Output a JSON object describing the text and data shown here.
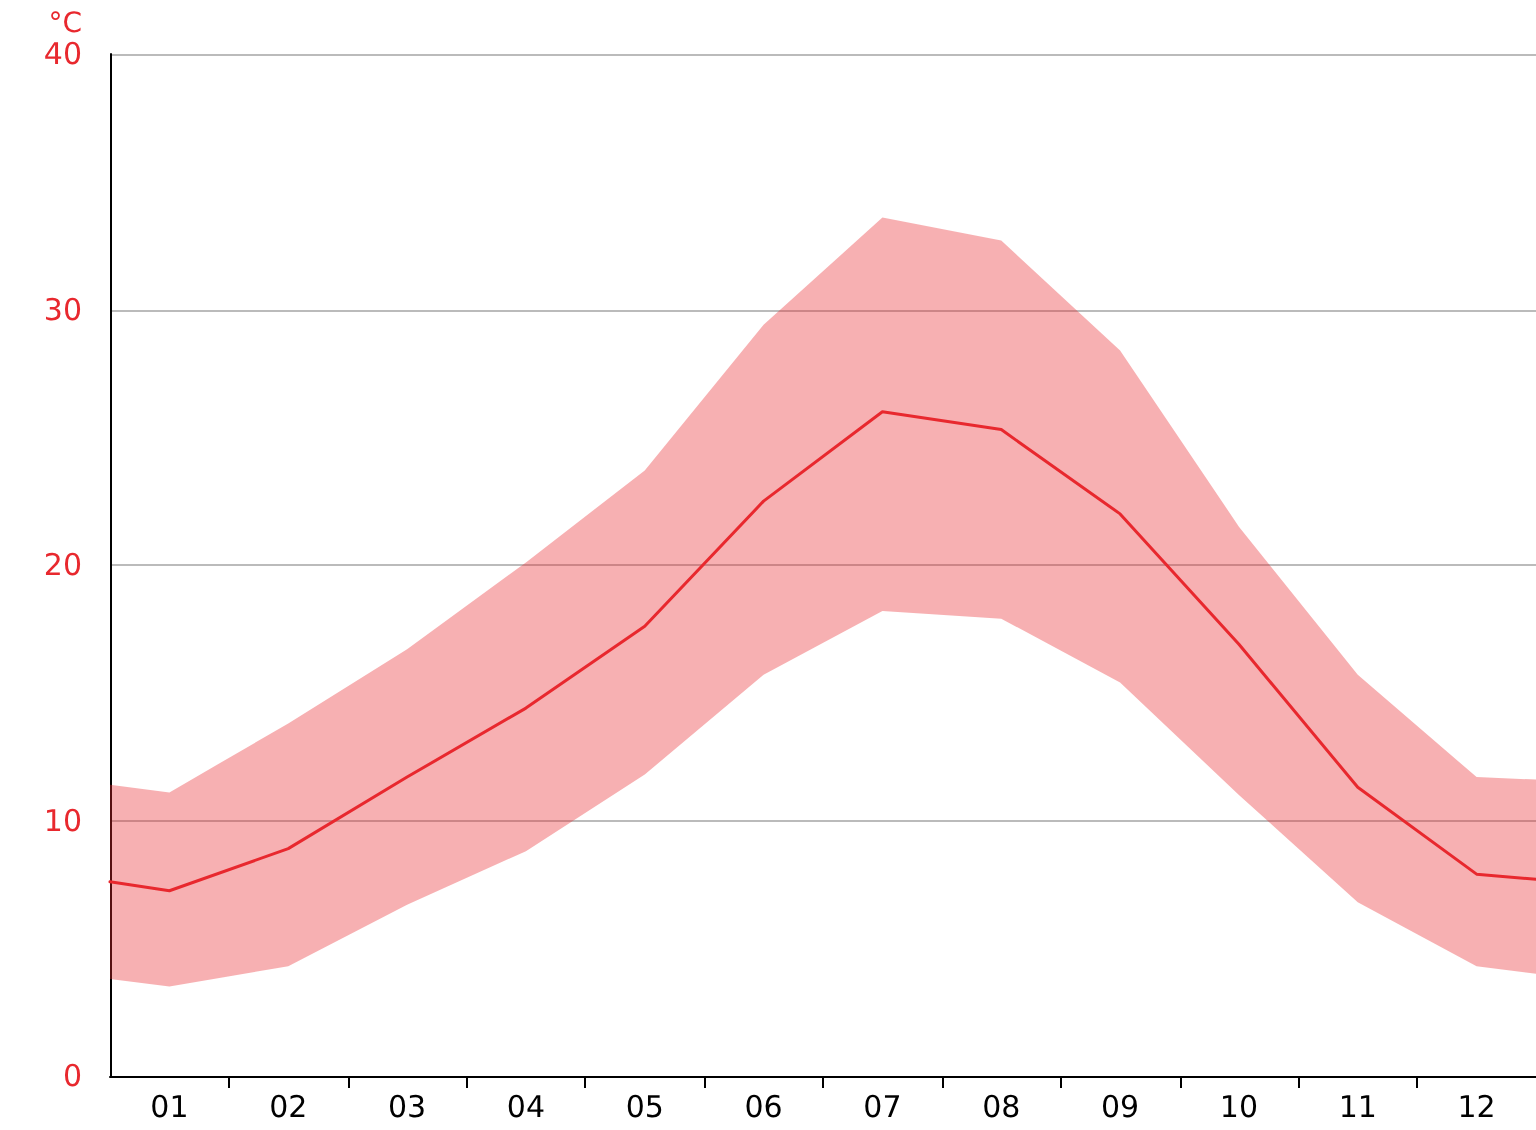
{
  "chart_data": {
    "type": "line",
    "ylabel": "°C",
    "x": [
      0.5,
      1,
      2,
      3,
      4,
      5,
      6,
      7,
      8,
      9,
      10,
      11,
      12,
      12.5
    ],
    "series": [
      {
        "color": "#e8282e",
        "values": [
          7.6,
          7.25,
          8.9,
          11.7,
          14.4,
          17.6,
          22.5,
          26,
          25.3,
          22,
          16.9,
          11.3,
          7.9,
          7.7
        ],
        "lower": [
          3.8,
          3.5,
          4.3,
          6.7,
          8.8,
          11.8,
          15.7,
          18.2,
          17.9,
          15.4,
          11,
          6.8,
          4.3,
          4
        ],
        "upper": [
          11.4,
          11.1,
          13.8,
          16.7,
          20.1,
          23.7,
          29.4,
          33.6,
          32.7,
          28.4,
          21.5,
          15.7,
          11.7,
          11.6
        ]
      }
    ],
    "xlim": [
      0.5,
      12.5
    ],
    "xticks": [
      {
        "value": 1,
        "label": "01"
      },
      {
        "value": 1.5,
        "label": null
      },
      {
        "value": 2,
        "label": "02"
      },
      {
        "value": 2.5,
        "label": null
      },
      {
        "value": 3,
        "label": "03"
      },
      {
        "value": 3.5,
        "label": null
      },
      {
        "value": 4,
        "label": "04"
      },
      {
        "value": 4.5,
        "label": null
      },
      {
        "value": 5,
        "label": "05"
      },
      {
        "value": 5.5,
        "label": null
      },
      {
        "value": 6,
        "label": "06"
      },
      {
        "value": 6.5,
        "label": null
      },
      {
        "value": 7,
        "label": "07"
      },
      {
        "value": 7.5,
        "label": null
      },
      {
        "value": 8,
        "label": "08"
      },
      {
        "value": 8.5,
        "label": null
      },
      {
        "value": 9,
        "label": "09"
      },
      {
        "value": 9.5,
        "label": null
      },
      {
        "value": 10,
        "label": "10"
      },
      {
        "value": 10.5,
        "label": null
      },
      {
        "value": 11,
        "label": "11"
      },
      {
        "value": 11.5,
        "label": null
      },
      {
        "value": 12,
        "label": "12"
      }
    ],
    "ylim": [
      0,
      40
    ],
    "yticks": [
      0,
      10,
      20,
      30,
      40
    ],
    "grid": "y",
    "marker": "none",
    "line_style": "solid"
  }
}
